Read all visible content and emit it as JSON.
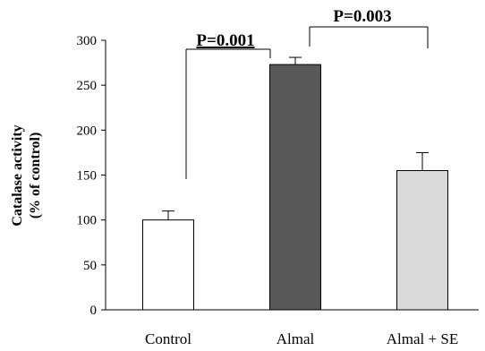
{
  "chart_data": {
    "type": "bar",
    "categories": [
      "Control",
      "Almal",
      "Almal + SE"
    ],
    "values": [
      100,
      273,
      155
    ],
    "errors": [
      10,
      8,
      20
    ],
    "bar_colors": [
      "#ffffff",
      "#595959",
      "#d9d9d9"
    ],
    "ylabel_line1": "Catalase activity",
    "ylabel_line2": "(% of control)",
    "ylim": [
      0,
      300
    ],
    "yticks": [
      0,
      50,
      100,
      150,
      200,
      250,
      300
    ],
    "grid": false,
    "annotations": [
      {
        "text": "P=0.001",
        "from": "Control",
        "to": "Almal"
      },
      {
        "text": "P=0.003",
        "from": "Almal",
        "to": "Almal + SE"
      }
    ]
  }
}
